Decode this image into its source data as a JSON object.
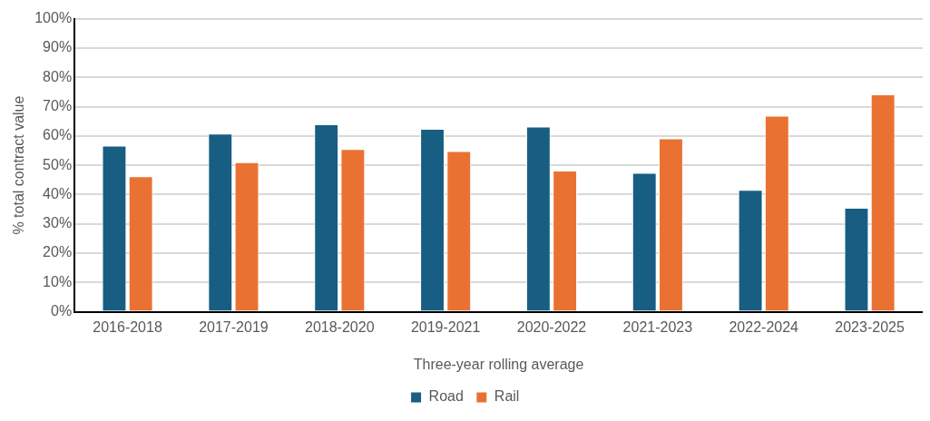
{
  "chart_data": {
    "type": "bar",
    "xlabel": "Three-year rolling average",
    "ylabel": "% total contract value",
    "categories": [
      "2016-2018",
      "2017-2019",
      "2018-2020",
      "2019-2021",
      "2020-2022",
      "2021-2023",
      "2022-2024",
      "2023-2025"
    ],
    "series": [
      {
        "name": "Road",
        "color": "#175e82",
        "values": [
          56.7,
          60.8,
          64.0,
          62.4,
          63.2,
          47.4,
          41.6,
          35.5
        ]
      },
      {
        "name": "Rail",
        "color": "#e97233",
        "values": [
          46.2,
          51.0,
          55.5,
          54.8,
          48.2,
          59.2,
          66.9,
          74.2
        ]
      }
    ],
    "ylim": [
      0,
      100
    ],
    "yticks": [
      {
        "value": 0,
        "label": "0%"
      },
      {
        "value": 10,
        "label": "10%"
      },
      {
        "value": 20,
        "label": "20%"
      },
      {
        "value": 30,
        "label": "30%"
      },
      {
        "value": 40,
        "label": "40%"
      },
      {
        "value": 50,
        "label": "50%"
      },
      {
        "value": 60,
        "label": "60%"
      },
      {
        "value": 70,
        "label": "70%"
      },
      {
        "value": 80,
        "label": "80%"
      },
      {
        "value": 90,
        "label": "90%"
      },
      {
        "value": 100,
        "label": "100%"
      }
    ],
    "grid": "y",
    "legend": "bottom"
  }
}
